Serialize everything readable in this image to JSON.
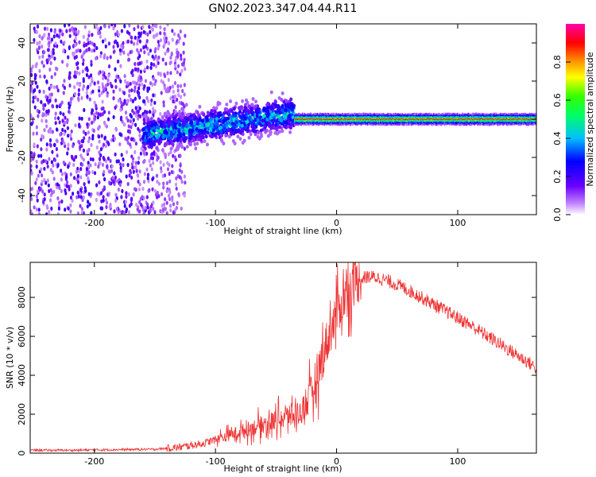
{
  "chart_data": [
    {
      "type": "heatmap",
      "title": "GN02.2023.347.04.44.R11",
      "xlabel": "Height of straight line (km)",
      "ylabel": "Frequency (Hz)",
      "xlim": [
        -253,
        165
      ],
      "ylim": [
        -50,
        50
      ],
      "xticks": [
        -200,
        -100,
        0,
        100
      ],
      "yticks": [
        -40,
        -20,
        0,
        20,
        40
      ],
      "colorbar": {
        "label": "Normalized spectral amplitude",
        "range": [
          0.0,
          1.0
        ],
        "ticks": [
          0.0,
          0.2,
          0.4,
          0.6,
          0.8
        ],
        "colormap": "rainbow (white-violet-blue-cyan-green-yellow-red-magenta)"
      },
      "features": [
        {
          "region": "diffuse noise",
          "x_range": [
            -253,
            -135
          ],
          "freq_range": [
            -50,
            50
          ],
          "amplitude": "low"
        },
        {
          "region": "spreading signal",
          "x_range": [
            -160,
            -35
          ],
          "freq_center": [
            -8,
            3
          ],
          "freq_spread": 10,
          "amplitude": "medium"
        },
        {
          "region": "narrow carrier",
          "x_range": [
            -35,
            165
          ],
          "freq_center": 0,
          "freq_spread": 2,
          "amplitude": "high"
        }
      ]
    },
    {
      "type": "line",
      "title": "",
      "xlabel": "Height of straight line (km)",
      "ylabel": "SNR (10 * v/v)",
      "xlim": [
        -253,
        165
      ],
      "ylim": [
        0,
        9800
      ],
      "xticks": [
        -200,
        -100,
        0,
        100
      ],
      "yticks": [
        0,
        2000,
        4000,
        6000,
        8000
      ],
      "series": [
        {
          "name": "SNR",
          "color": "#ee3333",
          "x": [
            -253,
            -220,
            -180,
            -150,
            -130,
            -110,
            -100,
            -90,
            -80,
            -70,
            -60,
            -50,
            -40,
            -30,
            -25,
            -20,
            -15,
            -10,
            -5,
            0,
            5,
            10,
            15,
            20,
            25,
            30,
            35,
            40,
            50,
            60,
            70,
            80,
            90,
            100,
            110,
            120,
            130,
            140,
            150,
            160,
            165
          ],
          "values": [
            150,
            150,
            180,
            200,
            300,
            500,
            700,
            900,
            1100,
            1300,
            1500,
            1700,
            1900,
            2100,
            2500,
            3200,
            4200,
            5300,
            6300,
            7200,
            7900,
            8400,
            8700,
            8950,
            9050,
            9050,
            9000,
            8900,
            8650,
            8350,
            8000,
            7650,
            7300,
            6950,
            6600,
            6200,
            5800,
            5400,
            5000,
            4600,
            4350
          ],
          "noise_amplitude_note": "strong fluctuations (peaks to ~9500) between -100 and 20 km"
        }
      ]
    }
  ]
}
